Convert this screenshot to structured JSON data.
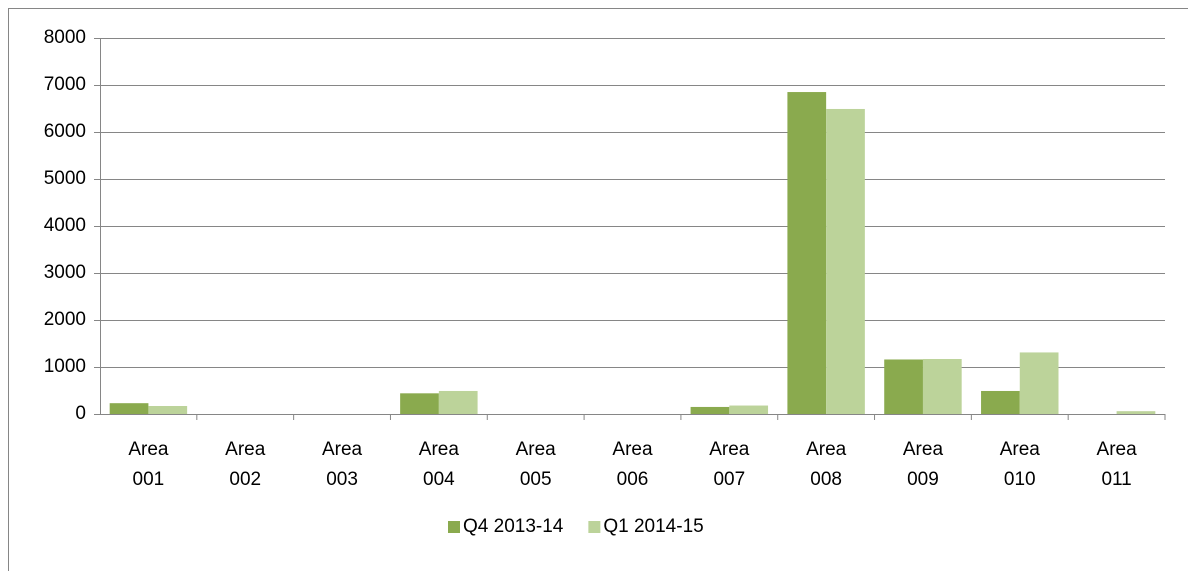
{
  "chart_data": {
    "type": "bar",
    "categories": [
      "Area 001",
      "Area 002",
      "Area 003",
      "Area 004",
      "Area 005",
      "Area 006",
      "Area 007",
      "Area 008",
      "Area 009",
      "Area 010",
      "Area 011"
    ],
    "series": [
      {
        "name": "Q4 2013-14",
        "color": "#8aaa4e",
        "values": [
          230,
          0,
          0,
          440,
          0,
          0,
          150,
          6850,
          1160,
          490,
          0
        ]
      },
      {
        "name": "Q1 2014-15",
        "color": "#bcd39a",
        "values": [
          170,
          0,
          0,
          490,
          0,
          0,
          180,
          6490,
          1170,
          1310,
          60
        ]
      }
    ],
    "ylim": [
      0,
      8000
    ],
    "yticks": [
      0,
      1000,
      2000,
      3000,
      4000,
      5000,
      6000,
      7000,
      8000
    ],
    "grid": true,
    "legend": "bottom"
  }
}
